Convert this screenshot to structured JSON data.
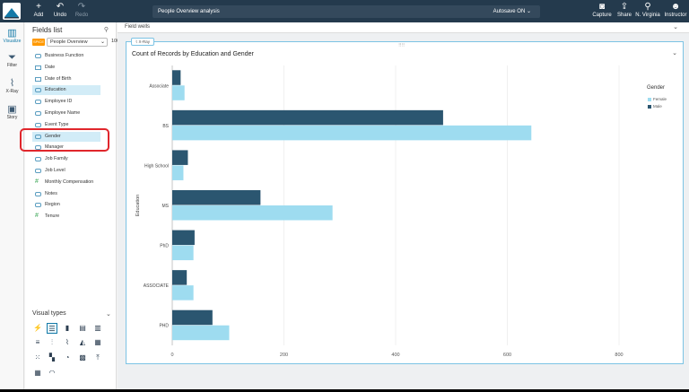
{
  "topbar": {
    "add": "Add",
    "undo": "Undo",
    "redo": "Redo",
    "analysis_name": "People Overview analysis",
    "autosave": "Autosave ON",
    "capture": "Capture",
    "share": "Share",
    "region": "N. Virginia",
    "user": "Instructor"
  },
  "leftnav": {
    "visualize": "Visualize",
    "filter": "Filter",
    "xray": "X-Ray",
    "story": "Story"
  },
  "fields_panel": {
    "title": "Fields list",
    "badge": "SPICE",
    "dataset": "People Overview",
    "percent": "100%",
    "fields": [
      {
        "label": "Business Function",
        "type": "dim"
      },
      {
        "label": "Date",
        "type": "date"
      },
      {
        "label": "Date of Birth",
        "type": "date"
      },
      {
        "label": "Education",
        "type": "dim",
        "selected": true
      },
      {
        "label": "Employee ID",
        "type": "dim"
      },
      {
        "label": "Employee Name",
        "type": "dim"
      },
      {
        "label": "Event Type",
        "type": "dim"
      },
      {
        "label": "Gender",
        "type": "dim",
        "selected": true
      },
      {
        "label": "Manager",
        "type": "dim"
      },
      {
        "label": "Job Family",
        "type": "dim"
      },
      {
        "label": "Job Level",
        "type": "dim"
      },
      {
        "label": "Monthly Compensation",
        "type": "num"
      },
      {
        "label": "Notes",
        "type": "dim"
      },
      {
        "label": "Region",
        "type": "dim"
      },
      {
        "label": "Tenure",
        "type": "num"
      }
    ],
    "visual_types_title": "Visual types"
  },
  "main": {
    "field_wells": "Field wells",
    "visual_tag": "X-Ray",
    "visual_title": "Count of Records by Education and Gender"
  },
  "colors": {
    "female": "#9edcf0",
    "male": "#2b5670",
    "accent": "#147aa8",
    "highlight": "#e0262c"
  },
  "chart_data": {
    "type": "bar",
    "orientation": "horizontal",
    "title": "Count of Records by Education and Gender",
    "ylabel": "Education",
    "categories": [
      "Associate",
      "BS",
      "High School",
      "MS",
      "PhD",
      "ASSOCIATE",
      "PHD"
    ],
    "series": [
      {
        "name": "Male",
        "values": [
          15,
          485,
          28,
          158,
          40,
          26,
          72
        ]
      },
      {
        "name": "Female",
        "values": [
          22,
          643,
          20,
          287,
          38,
          38,
          102
        ]
      }
    ],
    "xticks": [
      0,
      200,
      400,
      600,
      800
    ],
    "xlim": [
      0,
      800
    ],
    "legend_title": "Gender",
    "legend_items": [
      "Female",
      "Male"
    ],
    "legend_position": "right",
    "grid": true
  }
}
